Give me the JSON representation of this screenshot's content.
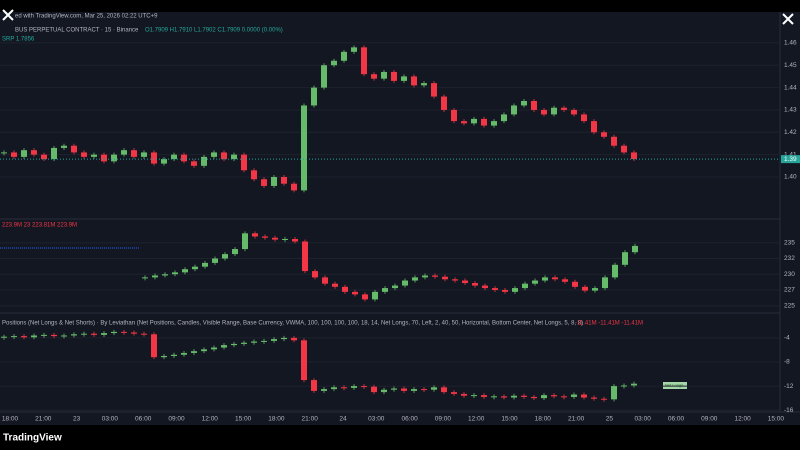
{
  "header": {
    "watermark": "ed with TradingView.com, Mar 25, 2026 02:22 UTC+9",
    "symbol": "BUS PERPETUAL CONTRACT · 15 · Binance",
    "ohlc": "O1.7909 H1.7910 L1.7902 C1.7909 0.0000 (0.00%)",
    "sub": "SRP 1.7856"
  },
  "panes": [
    {
      "type": "candlestick",
      "start": 4,
      "step": 10,
      "ylim": [
        1.383,
        1.468
      ],
      "yticks": [
        {
          "value": 1.4,
          "label": "1.40"
        },
        1.41,
        1.42,
        1.43,
        1.44,
        1.45,
        1.46
      ],
      "price_label": "1.39",
      "closes": [
        1.411,
        1.409,
        1.412,
        1.41,
        1.408,
        1.413,
        1.414,
        1.411,
        1.409,
        1.41,
        1.407,
        1.41,
        1.412,
        1.409,
        1.411,
        1.406,
        1.408,
        1.41,
        1.407,
        1.405,
        1.409,
        1.411,
        1.408,
        1.41,
        1.403,
        1.399,
        1.396,
        1.4,
        1.397,
        1.394,
        1.432,
        1.44,
        1.45,
        1.452,
        1.456,
        1.458,
        1.446,
        1.444,
        1.447,
        1.443,
        1.445,
        1.441,
        1.442,
        1.436,
        1.43,
        1.425,
        1.424,
        1.426,
        1.423,
        1.425,
        1.428,
        1.432,
        1.434,
        1.43,
        1.428,
        1.431,
        1.43,
        1.428,
        1.425,
        1.42,
        1.418,
        1.414,
        1.411,
        1.408
      ]
    },
    {
      "type": "candlestick",
      "label": "223.9M  23  223.81M  223.9M",
      "start": 145,
      "step": 10,
      "ylim": [
        224,
        238.3
      ],
      "yticks": [
        225,
        {
          "value": 227.5,
          "label": "227"
        },
        230,
        {
          "value": 232.5,
          "label": "232"
        },
        235
      ],
      "closes": [
        229.5,
        229.8,
        230.0,
        230.3,
        230.8,
        231.2,
        231.8,
        232.5,
        233.2,
        234.0,
        236.5,
        236.0,
        235.8,
        235.5,
        235.6,
        235.2,
        230.5,
        229.5,
        228.5,
        228.0,
        227.2,
        226.8,
        226.0,
        227.2,
        227.8,
        228.2,
        229.0,
        229.5,
        229.8,
        229.6,
        229.2,
        229.0,
        228.6,
        228.2,
        227.8,
        227.5,
        227.2,
        227.8,
        228.5,
        229.0,
        229.5,
        229.2,
        228.8,
        228.0,
        227.4,
        227.8,
        229.5,
        231.5,
        233.5,
        234.5
      ]
    },
    {
      "type": "candlestick",
      "label": "Positions (Net Longs & Net Shorts) · By Leviathan (Net Positions, Candles, Visible Range, Base Currency, VWMA, 100, 100, 100, 100, 18, 14, Net Longs, 70, Left, 2, 40, 50, Horizontal, Bottom Center, Net Longs, 5, 8, 8)",
      "values_text": "-11.41M   -11.41M   -11.41M",
      "badge": "Net Longs",
      "start": 4,
      "step": 10,
      "ylim": [
        -16.3,
        -0.2
      ],
      "yticks": [
        -4,
        -8,
        -12,
        -16
      ],
      "closes": [
        -3.8,
        -3.7,
        -3.9,
        -3.6,
        -3.5,
        -3.7,
        -3.6,
        -3.4,
        -3.3,
        -3.5,
        -3.2,
        -3.0,
        -3.1,
        -3.3,
        -3.4,
        -7.2,
        -7.0,
        -6.8,
        -6.5,
        -6.2,
        -5.9,
        -5.6,
        -5.2,
        -5.0,
        -4.8,
        -4.6,
        -4.5,
        -4.2,
        -4.0,
        -4.4,
        -11.0,
        -12.8,
        -12.5,
        -12.2,
        -12.3,
        -12.0,
        -12.1,
        -13.0,
        -12.6,
        -12.4,
        -12.8,
        -12.5,
        -12.6,
        -12.2,
        -13.0,
        -13.3,
        -13.6,
        -13.5,
        -13.8,
        -13.7,
        -13.9,
        -13.6,
        -13.8,
        -14.0,
        -13.5,
        -13.7,
        -13.8,
        -13.4,
        -13.9,
        -14.1,
        -14.2,
        -12.0,
        -11.9,
        -11.6
      ]
    }
  ],
  "time_axis": [
    "18:00",
    "21:00",
    "23",
    "03:00",
    "06:00",
    "09:00",
    "12:00",
    "15:00",
    "18:00",
    "21:00",
    "24",
    "03:00",
    "06:00",
    "09:00",
    "12:00",
    "15:00",
    "18:00",
    "21:00",
    "25",
    "03:00",
    "06:00",
    "09:00",
    "12:00",
    "15:00"
  ],
  "footer": {
    "brand": "TradingView"
  }
}
